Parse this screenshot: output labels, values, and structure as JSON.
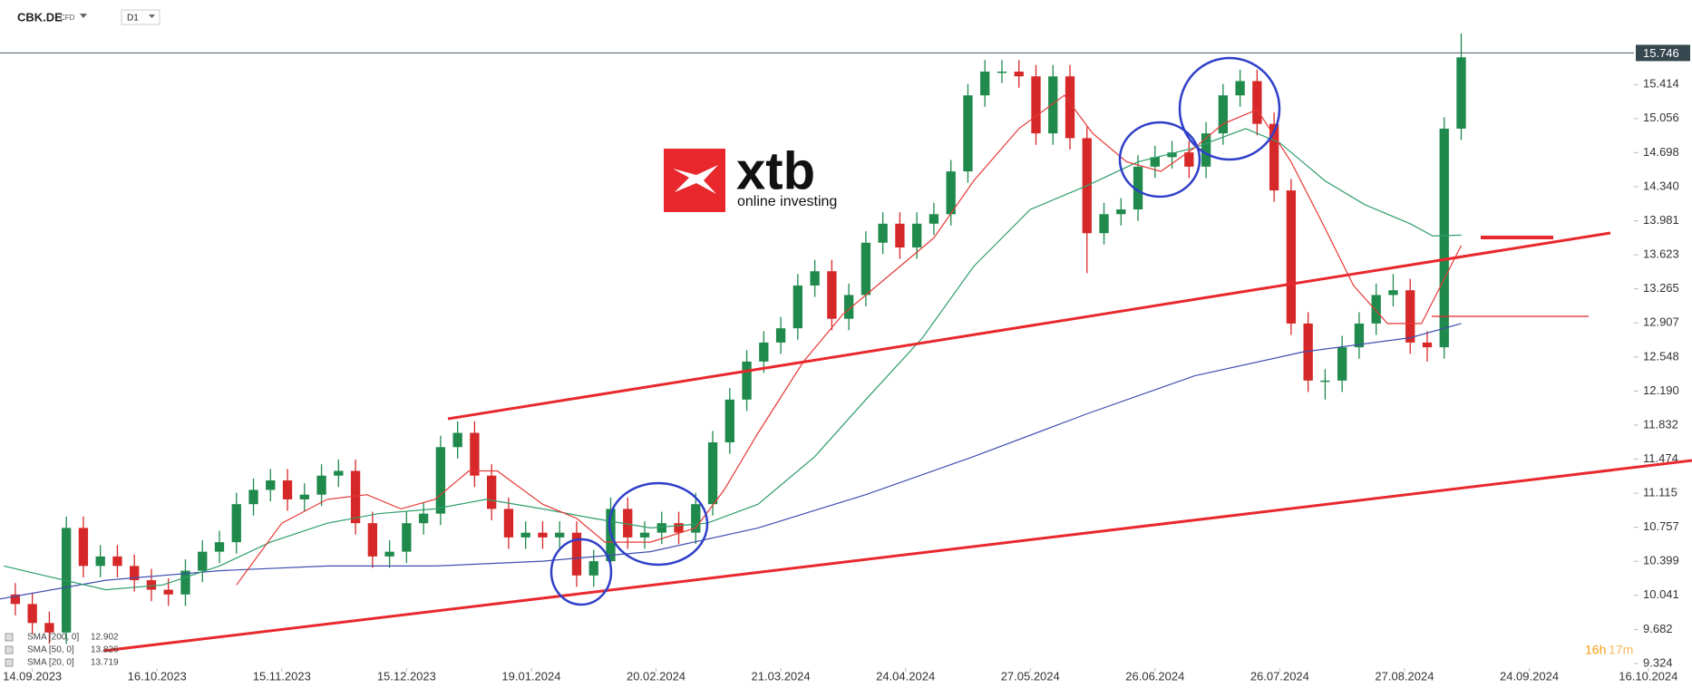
{
  "toolbar": {
    "symbol": "CBK.DE",
    "instrument": "CFD",
    "interval": "D1"
  },
  "logo": {
    "brand": "xtb",
    "tagline": "online investing"
  },
  "countdown": {
    "hours": "16h",
    "minutes": "17m"
  },
  "chart_data": {
    "type": "candlestick",
    "x": [
      -3,
      0,
      3,
      6,
      9,
      12,
      15,
      18,
      21,
      24,
      27,
      30,
      33,
      36,
      39,
      42,
      45,
      48,
      51,
      54,
      57,
      60,
      63,
      66,
      69,
      72,
      75,
      78,
      81,
      84,
      87,
      90,
      93,
      96,
      99,
      102,
      105,
      108,
      111,
      114,
      117,
      120,
      123,
      126,
      129,
      132,
      135,
      138,
      141,
      144,
      147,
      150,
      153,
      156,
      159,
      162,
      165,
      168,
      171,
      174,
      177,
      180,
      183,
      186,
      189,
      192,
      195,
      198,
      201,
      204,
      207,
      210,
      213,
      216,
      219,
      222,
      225,
      228,
      231,
      234,
      237,
      240,
      243,
      246,
      249,
      252
    ],
    "open": [
      10.05,
      9.95,
      9.75,
      9.65,
      10.75,
      10.35,
      10.45,
      10.35,
      10.2,
      10.1,
      10.05,
      10.3,
      10.5,
      10.6,
      11.0,
      11.15,
      11.25,
      11.05,
      11.1,
      11.3,
      11.35,
      10.8,
      10.45,
      10.5,
      10.8,
      10.9,
      11.6,
      11.75,
      11.3,
      10.95,
      10.65,
      10.7,
      10.65,
      10.7,
      10.25,
      10.4,
      10.95,
      10.65,
      10.7,
      10.8,
      10.7,
      11.0,
      11.65,
      12.1,
      12.5,
      12.7,
      12.85,
      13.3,
      13.45,
      12.95,
      13.2,
      13.75,
      13.95,
      13.7,
      13.95,
      14.05,
      14.5,
      15.3,
      15.55,
      15.55,
      15.5,
      14.9,
      15.5,
      14.85,
      13.85,
      14.05,
      14.1,
      14.55,
      14.65,
      14.7,
      14.55,
      14.9,
      15.3,
      15.45,
      15.0,
      14.3,
      12.9,
      12.3,
      12.3,
      12.65,
      12.9,
      13.2,
      13.25,
      12.7,
      12.65,
      14.95
    ],
    "high": [
      10.17,
      10.07,
      9.87,
      10.87,
      10.87,
      10.57,
      10.57,
      10.47,
      10.32,
      10.22,
      10.42,
      10.62,
      10.72,
      11.12,
      11.27,
      11.37,
      11.37,
      11.22,
      11.42,
      11.47,
      11.47,
      10.92,
      10.62,
      10.92,
      11.02,
      11.72,
      11.87,
      11.87,
      11.42,
      11.07,
      10.82,
      10.82,
      10.82,
      10.82,
      10.52,
      11.07,
      11.07,
      10.82,
      10.92,
      10.92,
      11.12,
      11.77,
      12.22,
      12.62,
      12.82,
      12.97,
      13.42,
      13.57,
      13.57,
      13.32,
      13.87,
      14.07,
      14.07,
      14.07,
      14.17,
      14.62,
      15.42,
      15.67,
      15.67,
      15.67,
      15.62,
      15.62,
      15.62,
      14.97,
      14.17,
      14.22,
      14.67,
      14.77,
      14.82,
      14.82,
      15.02,
      15.42,
      15.57,
      15.57,
      15.12,
      14.42,
      13.02,
      12.42,
      12.77,
      13.02,
      13.32,
      13.42,
      13.37,
      12.82,
      15.07,
      15.95
    ],
    "low": [
      9.83,
      9.63,
      9.53,
      9.53,
      10.23,
      10.23,
      10.23,
      10.08,
      9.98,
      9.93,
      9.93,
      10.18,
      10.38,
      10.48,
      10.88,
      11.03,
      10.93,
      10.93,
      10.98,
      11.18,
      10.68,
      10.33,
      10.33,
      10.38,
      10.68,
      10.78,
      11.48,
      11.18,
      10.83,
      10.53,
      10.53,
      10.53,
      10.53,
      10.13,
      10.13,
      10.28,
      10.53,
      10.53,
      10.58,
      10.58,
      10.58,
      10.88,
      11.53,
      11.98,
      12.38,
      12.58,
      12.73,
      13.18,
      12.83,
      12.83,
      13.08,
      13.63,
      13.58,
      13.58,
      13.83,
      13.93,
      14.38,
      15.18,
      15.43,
      15.38,
      14.78,
      14.78,
      14.73,
      13.43,
      13.73,
      13.93,
      13.98,
      14.43,
      14.53,
      14.43,
      14.43,
      14.78,
      15.18,
      14.88,
      14.18,
      12.78,
      12.18,
      12.1,
      12.18,
      12.53,
      12.78,
      13.08,
      12.58,
      12.5,
      12.53,
      14.83
    ],
    "close": [
      9.95,
      9.75,
      9.65,
      10.75,
      10.35,
      10.45,
      10.35,
      10.2,
      10.1,
      10.05,
      10.3,
      10.5,
      10.6,
      11.0,
      11.15,
      11.25,
      11.05,
      11.1,
      11.3,
      11.35,
      10.8,
      10.45,
      10.5,
      10.8,
      10.9,
      11.6,
      11.75,
      11.3,
      10.95,
      10.65,
      10.7,
      10.65,
      10.7,
      10.25,
      10.4,
      10.95,
      10.65,
      10.7,
      10.8,
      10.7,
      11.0,
      11.65,
      12.1,
      12.5,
      12.7,
      12.85,
      13.3,
      13.45,
      12.95,
      13.2,
      13.75,
      13.95,
      13.7,
      13.95,
      14.05,
      14.5,
      15.3,
      15.55,
      15.55,
      15.5,
      14.9,
      15.5,
      14.85,
      13.85,
      14.05,
      14.1,
      14.55,
      14.65,
      14.7,
      14.55,
      14.9,
      15.3,
      15.45,
      15.0,
      14.3,
      12.9,
      12.3,
      12.3,
      12.65,
      12.9,
      13.2,
      13.25,
      12.7,
      12.65,
      14.95,
      15.7
    ],
    "up_color": "#1f8a4c",
    "down_color": "#d62828",
    "series": [
      {
        "name": "SMA [200, 0]",
        "last_value": 12.902,
        "color": "#3f4fb0",
        "x": [
          -6,
          13,
          33,
          52,
          71,
          90,
          109,
          128,
          147,
          166,
          186,
          205,
          224,
          243,
          252
        ],
        "values": [
          10.0,
          10.2,
          10.3,
          10.35,
          10.35,
          10.4,
          10.5,
          10.75,
          11.1,
          11.5,
          11.95,
          12.35,
          12.6,
          12.75,
          12.9
        ]
      },
      {
        "name": "SMA [50, 0]",
        "last_value": 13.826,
        "color": "#2e9e6a",
        "x": [
          -5,
          2,
          13,
          23,
          33,
          42,
          52,
          61,
          71,
          80,
          90,
          99,
          109,
          119,
          128,
          138,
          147,
          157,
          166,
          176,
          186,
          195,
          205,
          214,
          220,
          228,
          235,
          243,
          247,
          252
        ],
        "values": [
          10.35,
          10.25,
          10.1,
          10.15,
          10.35,
          10.6,
          10.8,
          10.9,
          10.95,
          11.05,
          10.95,
          10.85,
          10.75,
          10.8,
          11.0,
          11.5,
          12.1,
          12.75,
          13.5,
          14.1,
          14.35,
          14.6,
          14.75,
          14.95,
          14.8,
          14.4,
          14.15,
          13.95,
          13.82,
          13.83
        ]
      },
      {
        "name": "SMA [20, 0]",
        "last_value": 13.719,
        "color": "#e53935",
        "x": [
          36,
          44,
          52,
          59,
          65,
          71,
          77,
          82,
          90,
          96,
          101,
          109,
          117,
          122,
          128,
          136,
          143,
          151,
          159,
          166,
          174,
          182,
          187,
          193,
          199,
          205,
          210,
          216,
          222,
          228,
          233,
          239,
          245,
          252
        ],
        "values": [
          10.15,
          10.8,
          11.05,
          11.1,
          10.95,
          11.05,
          11.35,
          11.35,
          11.0,
          10.85,
          10.6,
          10.6,
          10.75,
          11.15,
          11.75,
          12.5,
          13.0,
          13.4,
          13.8,
          14.4,
          14.95,
          15.3,
          14.9,
          14.6,
          14.5,
          14.75,
          15.0,
          15.15,
          14.6,
          13.9,
          13.3,
          12.9,
          12.9,
          13.72
        ]
      }
    ],
    "last_price": 15.746,
    "xlim": [
      -5.7,
      292.7
    ],
    "ylim": [
      9.276,
      16.303
    ],
    "xticks": [
      {
        "value": 0,
        "label": "14.09.2023"
      },
      {
        "value": 22,
        "label": "16.10.2023"
      },
      {
        "value": 44,
        "label": "15.11.2023"
      },
      {
        "value": 66,
        "label": "15.12.2023"
      },
      {
        "value": 88,
        "label": "19.01.2024"
      },
      {
        "value": 110,
        "label": "20.02.2024"
      },
      {
        "value": 132,
        "label": "21.03.2024"
      },
      {
        "value": 154,
        "label": "24.04.2024"
      },
      {
        "value": 176,
        "label": "27.05.2024"
      },
      {
        "value": 198,
        "label": "26.06.2024"
      },
      {
        "value": 220,
        "label": "26.07.2024"
      },
      {
        "value": 242,
        "label": "27.08.2024"
      },
      {
        "value": 264,
        "label": "24.09.2024"
      },
      {
        "value": 285,
        "label": "16.10.2024"
      }
    ],
    "yticks": [
      9.324,
      9.682,
      10.041,
      10.399,
      10.757,
      11.115,
      11.474,
      11.832,
      {
        "value": 12.19,
        "label": "12.190"
      },
      12.548,
      12.907,
      13.265,
      13.623,
      13.981,
      {
        "value": 14.34,
        "label": "14.340"
      },
      14.698,
      15.056,
      15.414
    ]
  }
}
